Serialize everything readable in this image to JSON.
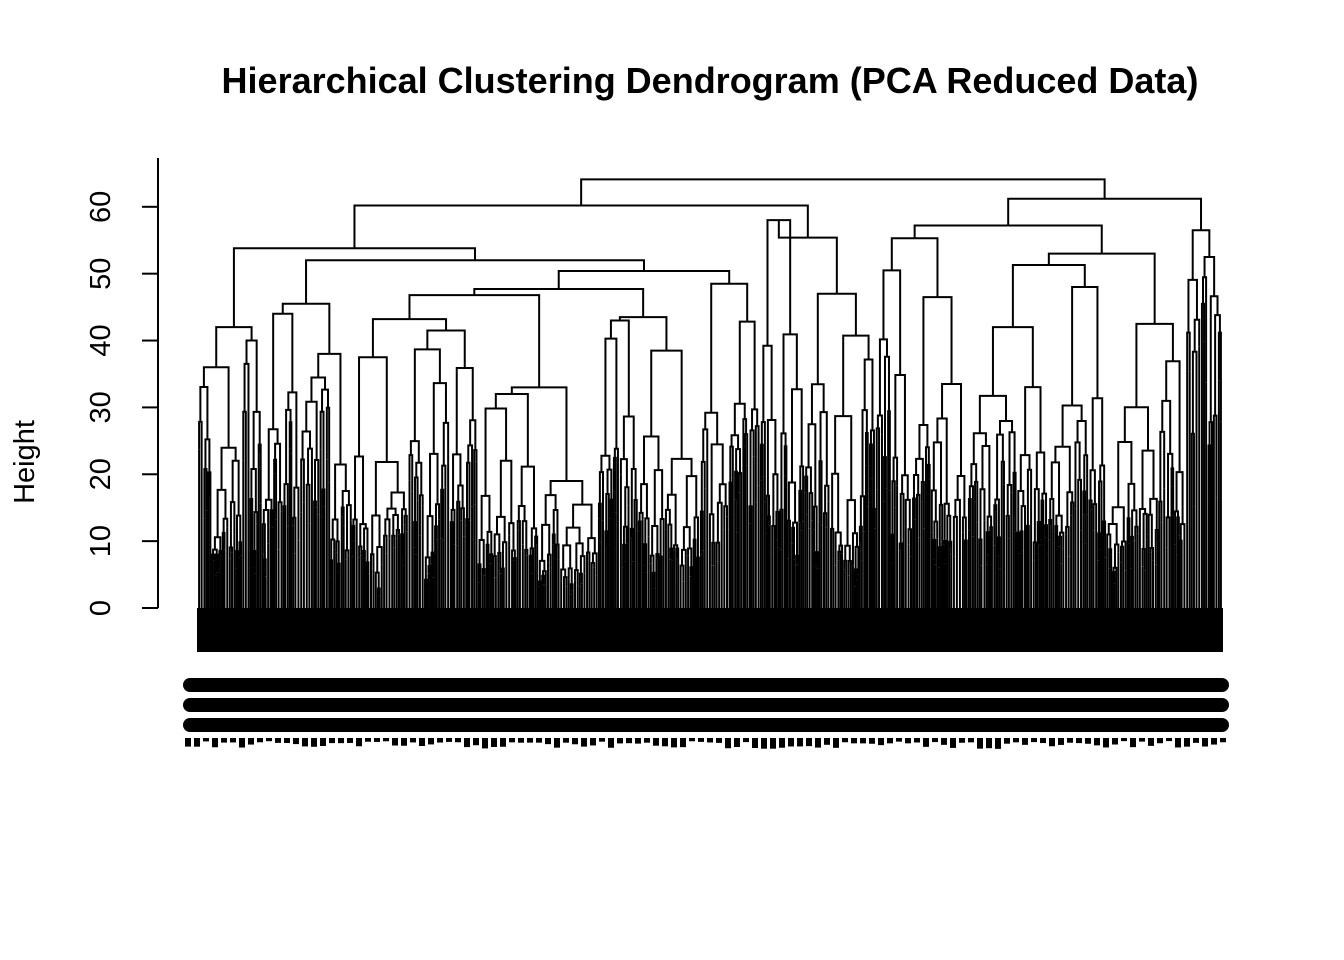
{
  "chart_data": {
    "type": "dendrogram",
    "title": "Hierarchical Clustering Dendrogram (PCA Reduced Data)",
    "ylabel": "Height",
    "xlabel": "",
    "ylim": [
      0,
      65
    ],
    "y_ticks": [
      0,
      10,
      20,
      30,
      40,
      50,
      60
    ],
    "grid": false,
    "legend": "none",
    "leaf_labels_visible": true,
    "leaf_labels_legible": false,
    "merges": [
      {
        "height": 64.1,
        "children": [
          "A",
          "B"
        ]
      },
      {
        "node": "A",
        "height": 60.2,
        "children": [
          "A1",
          "A2"
        ]
      },
      {
        "node": "B",
        "height": 61.2,
        "children": [
          "B1",
          "B2"
        ]
      },
      {
        "node": "A1",
        "height": 53.8,
        "children": [
          "A1a",
          "A1b"
        ]
      },
      {
        "node": "A1b",
        "height": 52.0,
        "children": [
          "A1b1",
          "A1b2"
        ]
      },
      {
        "node": "A1b2",
        "height": 50.4,
        "children": [
          "A1b2a",
          "A1b2b"
        ]
      },
      {
        "node": "A1b2a",
        "height": 47.7,
        "children": [
          "A1b2a1",
          "A1b2a2"
        ]
      },
      {
        "node": "A1b2a2",
        "height": 47.0,
        "children": [
          "A1b2a2a",
          "A1b2a2b"
        ]
      },
      {
        "node": "A1b2a2a",
        "height": 43.2,
        "children": [
          "A1b2a2a1",
          "A1b2a2a2"
        ]
      },
      {
        "node": "A2",
        "height": 58.2,
        "children": [
          "A2a",
          "A2b"
        ]
      },
      {
        "node": "A2b",
        "height": 55.4,
        "children": [
          "A2b1",
          "A2b2"
        ]
      },
      {
        "node": "B1",
        "height": 55.3,
        "children": [
          "B1a",
          "B1b"
        ]
      },
      {
        "node": "B2",
        "height": 57.2,
        "children": [
          "B2a",
          "B2b"
        ]
      },
      {
        "node": "B1b",
        "height": 51.3,
        "children": [
          "B1b1",
          "B1b2"
        ]
      },
      {
        "node": "B1b2",
        "height": 49.3,
        "children": [
          "B1b2a",
          "B1b2b"
        ]
      }
    ]
  }
}
